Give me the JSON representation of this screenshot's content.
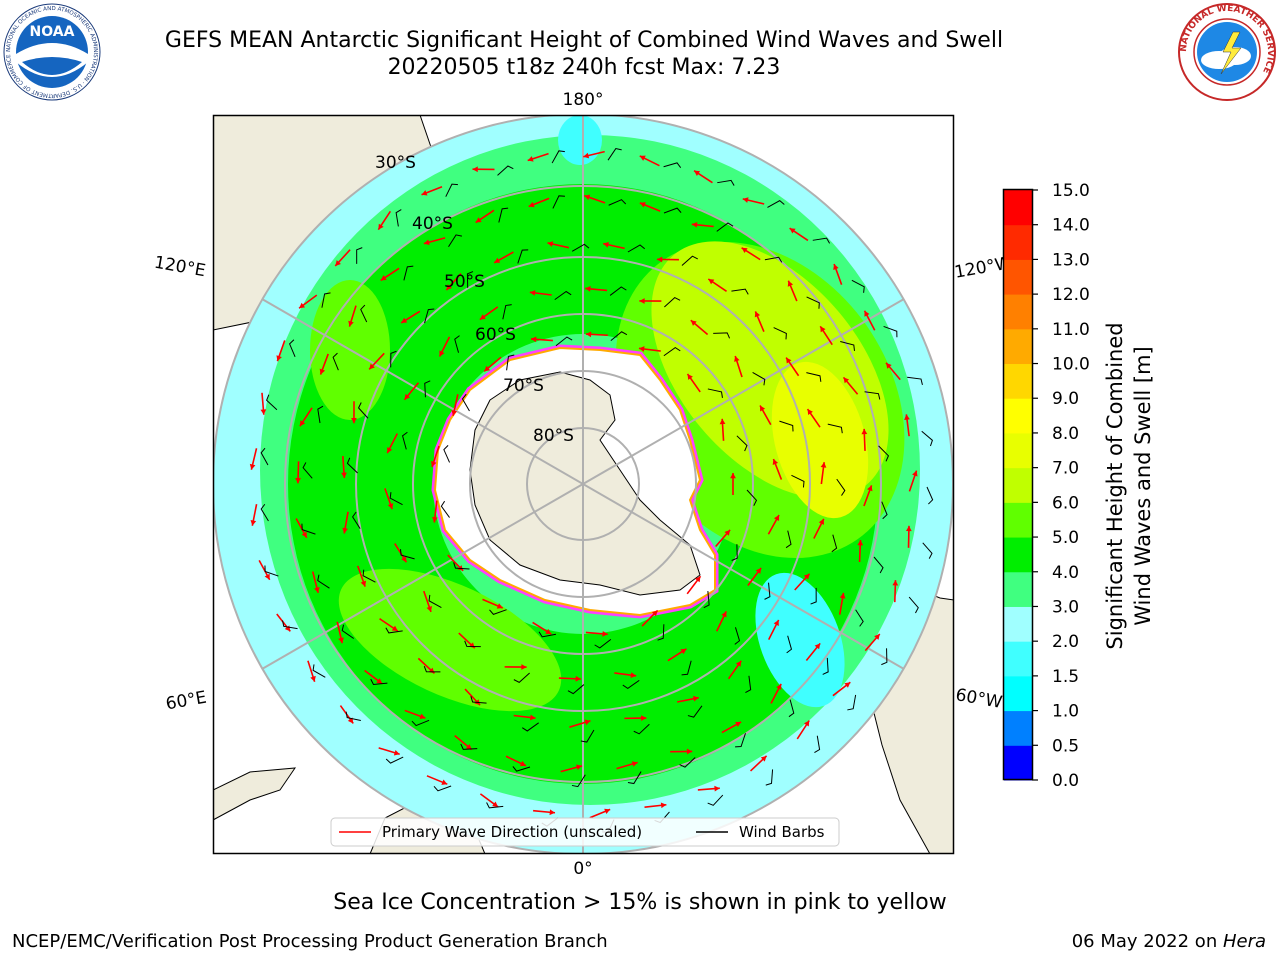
{
  "header": {
    "title_line1": "GEFS MEAN Antarctic Significant Height of Combined Wind Waves and Swell",
    "title_line2": "20220505 t18z 240h fcst   Max: 7.23"
  },
  "logos": {
    "noaa_text": "NOAA",
    "noaa_ring_text": "NATIONAL OCEANIC AND ATMOSPHERIC ADMINISTRATION · U.S. DEPARTMENT OF COMMERCE",
    "nws_ring_text": "NATIONAL WEATHER SERVICE"
  },
  "map": {
    "latitude_labels": [
      "30°S",
      "40°S",
      "50°S",
      "60°S",
      "70°S",
      "80°S"
    ],
    "longitude_labels": {
      "top": "180°",
      "bottom": "0°",
      "upper_left": "120°E",
      "lower_left": "60°E",
      "upper_right": "120°W",
      "lower_right": "60°W"
    },
    "legend": {
      "wave_direction": "Primary Wave Direction (unscaled)",
      "wind_barbs": "Wind Barbs"
    }
  },
  "colorbar": {
    "label_line1": "Significant Height of Combined",
    "label_line2": "Wind Waves and Swell [m]",
    "ticks": [
      "0.0",
      "0.5",
      "1.0",
      "1.5",
      "2.0",
      "3.0",
      "4.0",
      "5.0",
      "6.0",
      "7.0",
      "8.0",
      "9.0",
      "10.0",
      "11.0",
      "12.0",
      "13.0",
      "14.0",
      "15.0"
    ],
    "colors": [
      "#0000ff",
      "#0080ff",
      "#00ffff",
      "#40ffff",
      "#a0ffff",
      "#40ff80",
      "#00ee00",
      "#60ff00",
      "#c0ff00",
      "#e8ff00",
      "#ffff00",
      "#ffd700",
      "#ffaa00",
      "#ff8000",
      "#ff5500",
      "#ff2a00",
      "#ff0000"
    ]
  },
  "colors": {
    "land": "#efecdc",
    "ocean_lowest": "#a0ffff",
    "wave_direction_arrow": "#ff0000",
    "wind_barb": "#000000",
    "sea_ice": "#ff40ff"
  },
  "footer": {
    "sea_ice_note": "Sea Ice Concentration > 15% is shown in pink to yellow",
    "credit": "NCEP/EMC/Verification Post Processing Product Generation Branch",
    "date": "06 May 2022 on ",
    "host": "Hera"
  }
}
